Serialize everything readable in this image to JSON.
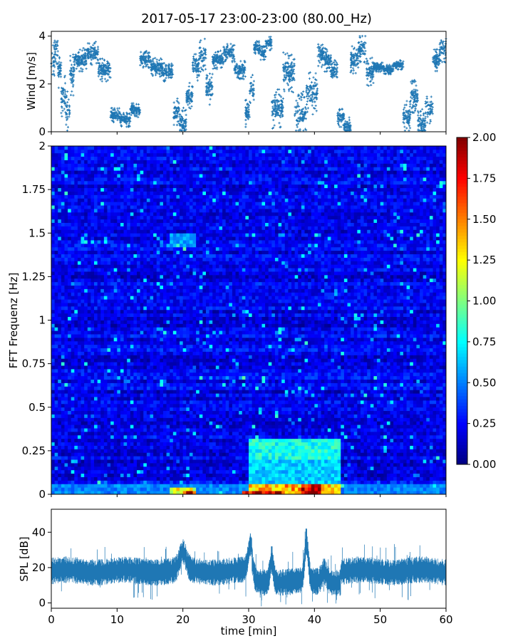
{
  "figure": {
    "title": "2017-05-17 23:00-23:00 (80.00_Hz)"
  },
  "chart_data": [
    {
      "type": "scatter",
      "name": "wind",
      "ylabel": "Wind [m/s]",
      "xlim": [
        0,
        60
      ],
      "ylim": [
        0,
        4.2
      ],
      "yticks": [
        0,
        2,
        4
      ],
      "color": "#1f77b4",
      "marker": "+",
      "grid": false,
      "segments": [
        {
          "t": [
            0,
            1.5
          ],
          "levels": [
            3.0,
            3.5,
            2.6
          ],
          "spread": 0.8
        },
        {
          "t": [
            1.5,
            3.5
          ],
          "levels": [
            1.5,
            0.8,
            2.4
          ],
          "spread": 0.9
        },
        {
          "t": [
            3.5,
            9.0
          ],
          "levels": [
            3.0,
            3.3,
            2.6
          ],
          "spread": 0.5
        },
        {
          "t": [
            9.0,
            13.5
          ],
          "levels": [
            0.7,
            0.5,
            0.9
          ],
          "spread": 0.3
        },
        {
          "t": [
            13.5,
            18.5
          ],
          "levels": [
            3.0,
            2.7,
            2.5
          ],
          "spread": 0.4
        },
        {
          "t": [
            18.5,
            21.5
          ],
          "levels": [
            0.8,
            0.4,
            1.5
          ],
          "spread": 0.6
        },
        {
          "t": [
            21.5,
            24.5
          ],
          "levels": [
            2.8,
            3.2,
            1.8
          ],
          "spread": 0.7
        },
        {
          "t": [
            24.5,
            29.5
          ],
          "levels": [
            3.0,
            3.3,
            2.6
          ],
          "spread": 0.4
        },
        {
          "t": [
            29.5,
            30.8
          ],
          "levels": [
            0.8,
            1.8
          ],
          "spread": 0.6
        },
        {
          "t": [
            30.8,
            33.5
          ],
          "levels": [
            3.5,
            3.3,
            3.7
          ],
          "spread": 0.3
        },
        {
          "t": [
            33.5,
            40.5
          ],
          "levels": [
            1.0,
            2.5,
            0.8,
            1.6
          ],
          "spread": 0.9
        },
        {
          "t": [
            40.5,
            43.5
          ],
          "levels": [
            3.2,
            3.0,
            2.5
          ],
          "spread": 0.5
        },
        {
          "t": [
            43.5,
            45.5
          ],
          "levels": [
            0.6,
            0.2
          ],
          "spread": 0.4
        },
        {
          "t": [
            45.5,
            49.0
          ],
          "levels": [
            3.0,
            3.5,
            2.5
          ],
          "spread": 0.6
        },
        {
          "t": [
            49.0,
            53.5
          ],
          "levels": [
            2.7,
            2.6,
            2.8
          ],
          "spread": 0.2
        },
        {
          "t": [
            53.5,
            58.0
          ],
          "levels": [
            0.6,
            1.5,
            0.3,
            1.0
          ],
          "spread": 0.7
        },
        {
          "t": [
            58.0,
            60.0
          ],
          "levels": [
            3.0,
            3.4
          ],
          "spread": 0.5
        }
      ]
    },
    {
      "type": "heatmap",
      "name": "spectrogram",
      "ylabel": "FFT Frequenz [Hz]",
      "xlim": [
        0,
        60
      ],
      "ylim": [
        0,
        2
      ],
      "yticks": [
        0,
        0.25,
        0.5,
        0.75,
        1,
        1.25,
        1.5,
        1.75,
        2
      ],
      "ytick_labels": [
        "0",
        "0.25",
        "0.5",
        "0.75",
        "1",
        "1.25",
        "1.5",
        "1.75",
        "2"
      ],
      "colormap": "jet",
      "clim": [
        0,
        2
      ],
      "colorbar": {
        "ticks": [
          0.0,
          0.25,
          0.5,
          0.75,
          1.0,
          1.25,
          1.5,
          1.75,
          2.0
        ],
        "tick_labels": [
          "0.00",
          "0.25",
          "0.50",
          "0.75",
          "1.00",
          "1.25",
          "1.50",
          "1.75",
          "2.00"
        ]
      },
      "time_bins": 120,
      "freq_bins": 100,
      "background_level": 0.22,
      "noise_amplitude": 0.12,
      "features": [
        {
          "t": [
            18,
            22
          ],
          "f": [
            1.42,
            1.5
          ],
          "value": 0.6
        },
        {
          "t": [
            30,
            44
          ],
          "f": [
            0.2,
            0.32
          ],
          "value": 0.85
        },
        {
          "t": [
            30,
            44
          ],
          "f": [
            0.05,
            0.2
          ],
          "value": 0.7
        },
        {
          "t": [
            30,
            44
          ],
          "f": [
            0,
            0.05
          ],
          "value": 1.5
        },
        {
          "t": [
            38,
            41
          ],
          "f": [
            0,
            0.05
          ],
          "value": 2.0
        },
        {
          "t": [
            29,
            35
          ],
          "f": [
            0,
            0.02
          ],
          "value": 2.0
        },
        {
          "t": [
            18,
            22
          ],
          "f": [
            0,
            0.03
          ],
          "value": 1.3
        },
        {
          "t": [
            20,
            22
          ],
          "f": [
            0,
            0.015
          ],
          "value": 2.0
        },
        {
          "t": [
            0,
            60
          ],
          "f": [
            0,
            0.06
          ],
          "value": 0.55
        }
      ]
    },
    {
      "type": "line",
      "name": "spl",
      "xlabel": "time [min]",
      "ylabel": "SPL [dB]",
      "xlim": [
        0,
        60
      ],
      "ylim": [
        -3,
        53
      ],
      "xticks": [
        0,
        10,
        20,
        30,
        40,
        50,
        60
      ],
      "yticks": [
        0,
        20,
        40
      ],
      "color": "#1f77b4",
      "grid": false,
      "baseline_db": 18,
      "band_halfwidth_db": 5,
      "events": [
        {
          "t": 20,
          "peak": 30,
          "width": 0.7
        },
        {
          "t": 30.3,
          "peak": 35,
          "width": 0.5
        },
        {
          "t": 33.5,
          "peak": 32,
          "width": 0.4
        },
        {
          "t": 38.8,
          "peak": 42,
          "width": 0.4
        },
        {
          "t": 41.5,
          "peak": 25,
          "width": 0.6
        }
      ],
      "dips": [
        {
          "t": [
            30.5,
            44
          ],
          "delta": -6
        }
      ]
    }
  ]
}
